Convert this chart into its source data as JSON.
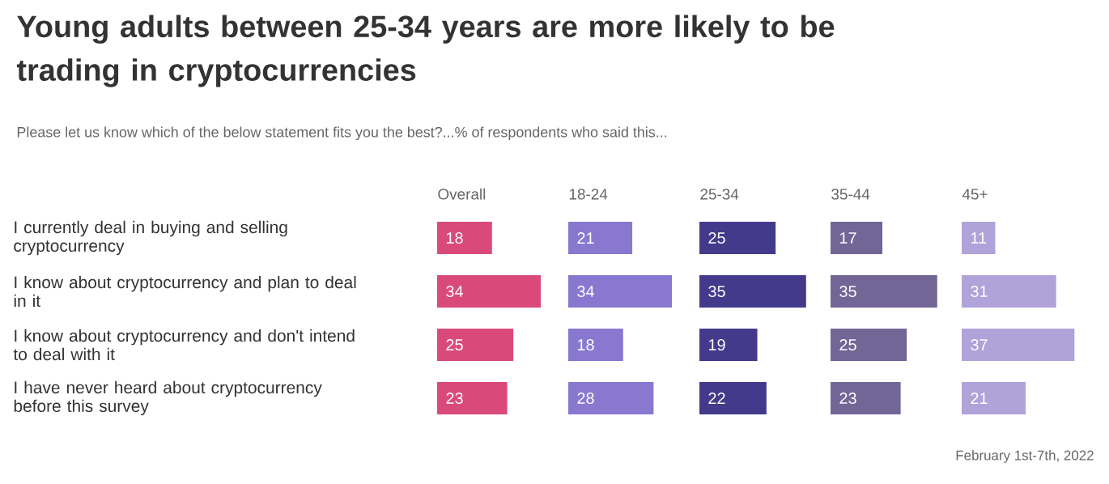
{
  "chart_data": [
    {
      "type": "other",
      "title": "Young adults between 25-34 years are more likely to be trading in cryptocurrencies",
      "subtitle": "Please let us know which of the below statement fits you the best?...% of respondents who said this...",
      "annotations": [
        "February 1st-7th, 2022"
      ]
    },
    {
      "type": "bar",
      "orientation": "horizontal",
      "title": "Overall",
      "categories": [
        "I currently deal in buying and selling cryptocurrency",
        "I know about cryptocurrency and plan to deal in it",
        "I know about cryptocurrency and don't intend to deal with it",
        "I have never heard about cryptocurrency before this survey"
      ],
      "color": "#d94a7a",
      "values": [
        18,
        34,
        25,
        23
      ],
      "data_labels": true
    },
    {
      "type": "bar",
      "orientation": "horizontal",
      "title": "18-24",
      "categories": [
        null,
        null,
        null,
        null
      ],
      "color": "#8878d0",
      "values": [
        21,
        34,
        18,
        28
      ],
      "data_labels": true
    },
    {
      "type": "bar",
      "orientation": "horizontal",
      "title": "25-34",
      "categories": [
        null,
        null,
        null,
        null
      ],
      "color": "#433a8c",
      "values": [
        25,
        35,
        19,
        22
      ],
      "data_labels": true
    },
    {
      "type": "bar",
      "orientation": "horizontal",
      "title": "35-44",
      "categories": [
        null,
        null,
        null,
        null
      ],
      "color": "#716695",
      "values": [
        17,
        35,
        25,
        23
      ],
      "data_labels": true
    },
    {
      "type": "bar",
      "orientation": "horizontal",
      "title": "45+",
      "categories": [
        null,
        null,
        null,
        null
      ],
      "color": "#afa3da",
      "values": [
        11,
        31,
        37,
        21
      ],
      "data_labels": true
    }
  ]
}
